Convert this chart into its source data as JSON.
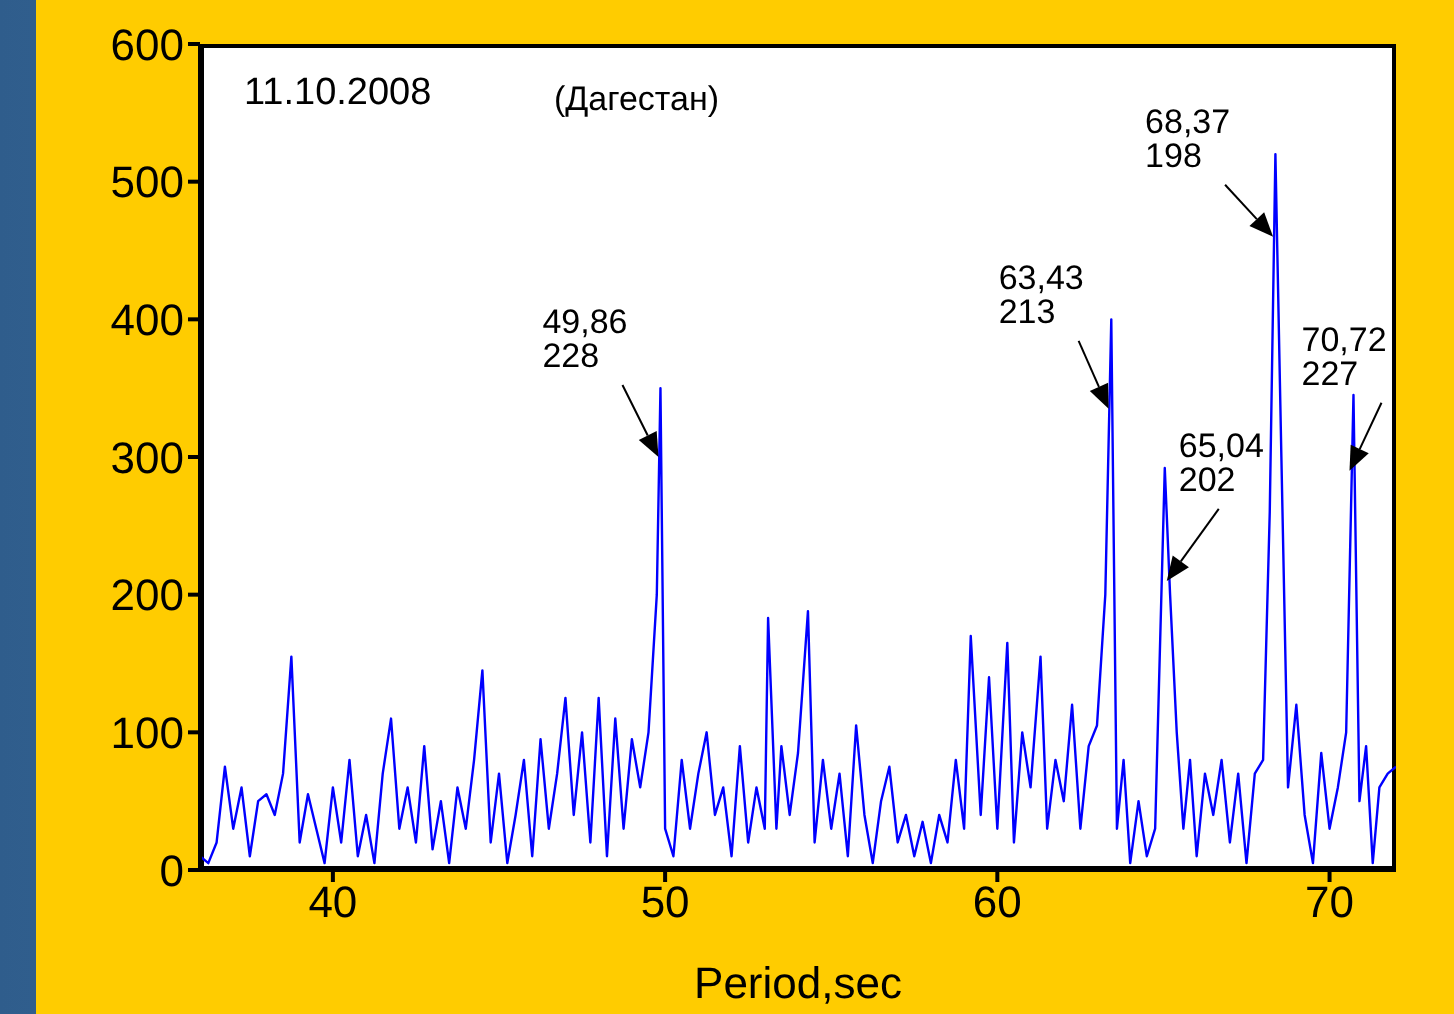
{
  "chart_data": {
    "type": "line",
    "xlabel": "Period,sec",
    "x": [
      36.0,
      36.25,
      36.5,
      36.75,
      37.0,
      37.25,
      37.5,
      37.75,
      38.0,
      38.25,
      38.5,
      38.75,
      39.0,
      39.25,
      39.5,
      39.75,
      40.0,
      40.25,
      40.5,
      40.75,
      41.0,
      41.25,
      41.5,
      41.75,
      42.0,
      42.25,
      42.5,
      42.75,
      43.0,
      43.25,
      43.5,
      43.75,
      44.0,
      44.25,
      44.5,
      44.75,
      45.0,
      45.25,
      45.5,
      45.75,
      46.0,
      46.25,
      46.5,
      46.75,
      47.0,
      47.25,
      47.5,
      47.75,
      48.0,
      48.25,
      48.5,
      48.75,
      49.0,
      49.25,
      49.5,
      49.75,
      49.86,
      50.0,
      50.25,
      50.5,
      50.75,
      51.0,
      51.25,
      51.5,
      51.75,
      52.0,
      52.25,
      52.5,
      52.75,
      53.0,
      53.1,
      53.35,
      53.5,
      53.75,
      54.0,
      54.3,
      54.5,
      54.75,
      55.0,
      55.25,
      55.5,
      55.75,
      56.0,
      56.25,
      56.5,
      56.75,
      57.0,
      57.25,
      57.5,
      57.75,
      58.0,
      58.25,
      58.5,
      58.75,
      59.0,
      59.2,
      59.5,
      59.75,
      60.0,
      60.3,
      60.5,
      60.75,
      61.0,
      61.3,
      61.5,
      61.75,
      62.0,
      62.25,
      62.5,
      62.75,
      63.0,
      63.25,
      63.43,
      63.6,
      63.8,
      64.0,
      64.25,
      64.5,
      64.75,
      65.04,
      65.2,
      65.4,
      65.6,
      65.8,
      66.0,
      66.25,
      66.5,
      66.75,
      67.0,
      67.25,
      67.5,
      67.75,
      68.0,
      68.2,
      68.37,
      68.55,
      68.75,
      69.0,
      69.25,
      69.5,
      69.75,
      70.0,
      70.25,
      70.5,
      70.72,
      70.9,
      71.1,
      71.3,
      71.5,
      71.75,
      72.0
    ],
    "series": [
      {
        "color": "#0000ff",
        "values": [
          10,
          5,
          20,
          75,
          30,
          60,
          10,
          50,
          55,
          40,
          70,
          155,
          20,
          55,
          30,
          5,
          60,
          20,
          80,
          10,
          40,
          5,
          70,
          110,
          30,
          60,
          20,
          90,
          15,
          50,
          5,
          60,
          30,
          80,
          145,
          20,
          70,
          5,
          40,
          80,
          10,
          95,
          30,
          70,
          125,
          40,
          100,
          20,
          125,
          10,
          110,
          30,
          95,
          60,
          100,
          200,
          350,
          30,
          10,
          80,
          30,
          70,
          100,
          40,
          60,
          10,
          90,
          20,
          60,
          30,
          183,
          30,
          90,
          40,
          85,
          188,
          20,
          80,
          30,
          70,
          10,
          105,
          40,
          5,
          50,
          75,
          20,
          40,
          10,
          35,
          5,
          40,
          20,
          80,
          30,
          170,
          40,
          140,
          30,
          165,
          20,
          100,
          60,
          155,
          30,
          80,
          50,
          120,
          30,
          90,
          105,
          200,
          400,
          30,
          80,
          5,
          50,
          10,
          30,
          292,
          200,
          100,
          30,
          80,
          10,
          70,
          40,
          80,
          20,
          70,
          5,
          70,
          80,
          260,
          520,
          300,
          60,
          120,
          40,
          5,
          85,
          30,
          60,
          100,
          345,
          50,
          90,
          5,
          60,
          70,
          75
        ]
      }
    ],
    "xlim": [
      36,
      72
    ],
    "xticks": [
      40,
      50,
      60,
      70
    ],
    "ylim": [
      0,
      600
    ],
    "yticks": [
      0,
      100,
      200,
      300,
      400,
      500,
      600
    ],
    "grid": false,
    "legend": false,
    "marker": "none",
    "line_style": "solid",
    "annotations": [
      "11.10.2008",
      "(Дагестан)",
      {
        "text": "49,86\n228",
        "x": 49.8,
        "y": 300
      },
      {
        "text": "63,43\n213",
        "x": 63.35,
        "y": 335
      },
      {
        "text": "65,04\n202",
        "x": 65.1,
        "y": 210
      },
      {
        "text": "68,37\n198",
        "x": 68.3,
        "y": 460
      },
      {
        "text": "70,72\n227",
        "x": 70.6,
        "y": 290
      }
    ]
  }
}
